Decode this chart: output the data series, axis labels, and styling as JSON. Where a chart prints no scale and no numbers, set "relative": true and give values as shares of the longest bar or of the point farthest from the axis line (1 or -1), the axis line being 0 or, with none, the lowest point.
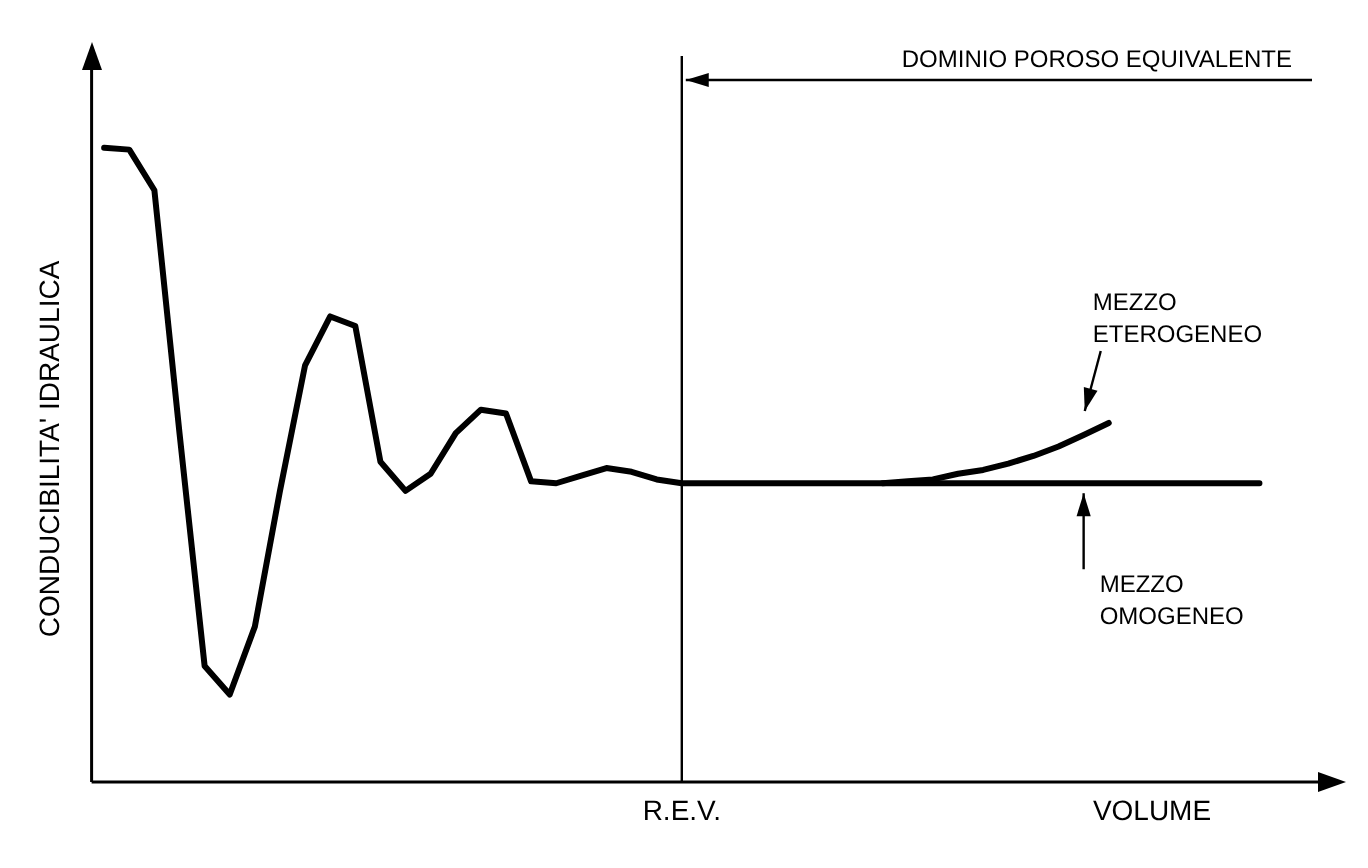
{
  "chart_data": {
    "type": "line",
    "relative": true,
    "xlabel": "VOLUME",
    "ylabel": "CONDUCIBILITA' IDRAULICA",
    "grid": false,
    "legend": false,
    "marker": "none",
    "line_style": "solid",
    "categories": [
      null,
      null,
      null,
      null,
      null,
      null,
      null,
      null,
      null,
      null,
      null,
      null,
      null,
      null,
      null,
      null,
      null,
      null,
      null,
      null,
      null,
      null,
      null,
      null,
      null,
      null,
      null,
      null,
      null,
      null,
      null,
      null,
      null,
      null,
      null,
      null,
      null,
      null,
      null,
      null,
      null,
      null,
      null,
      null,
      null,
      null,
      null
    ],
    "series": [
      {
        "color": "#000000",
        "values": [
          1.0,
          0.997,
          0.933,
          0.55,
          0.183,
          0.138,
          0.245,
          0.459,
          0.657,
          0.734,
          0.719,
          0.505,
          0.459,
          0.486,
          0.55,
          0.587,
          0.581,
          0.474,
          0.471,
          0.483,
          0.495,
          0.489,
          0.477,
          0.471,
          0.471,
          0.471,
          0.471,
          0.471,
          0.471,
          0.471,
          0.471,
          0.471,
          0.471,
          0.471,
          0.471,
          0.471,
          0.471,
          0.471,
          0.471,
          0.471,
          0.471,
          0.471,
          0.471,
          0.471,
          0.471,
          0.471,
          0.471
        ]
      },
      {
        "color": "#000000",
        "values": [
          null,
          null,
          null,
          null,
          null,
          null,
          null,
          null,
          null,
          null,
          null,
          null,
          null,
          null,
          null,
          null,
          null,
          null,
          null,
          null,
          null,
          null,
          null,
          null,
          null,
          null,
          null,
          null,
          null,
          null,
          null,
          0.471,
          0.474,
          0.477,
          0.486,
          0.492,
          0.502,
          0.514,
          0.529,
          0.547,
          0.566,
          null,
          null,
          null,
          null,
          null,
          null
        ]
      }
    ],
    "annotations": [
      "DOMINIO POROSO EQUIVALENTE",
      "MEZZO ETEROGENEO",
      "MEZZO OMOGENEO",
      "R.E.V."
    ]
  }
}
